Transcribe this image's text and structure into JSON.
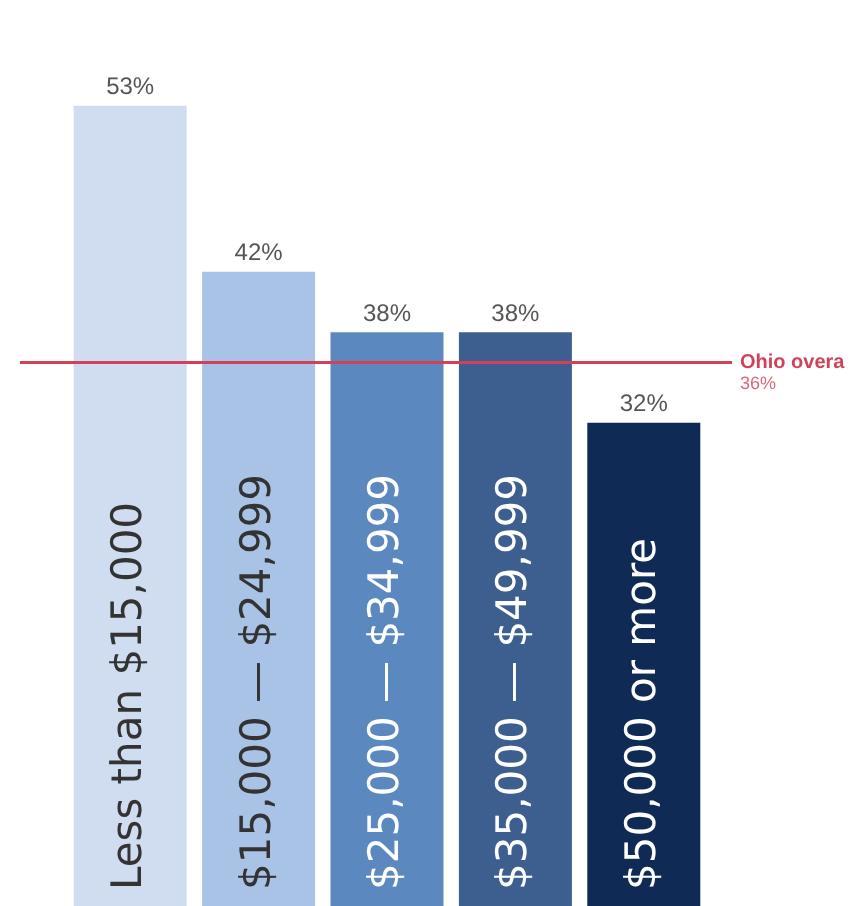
{
  "chart_data": {
    "type": "bar",
    "categories": [
      "Less than $15,000",
      "$15,000 — $24,999",
      "$25,000 — $34,999",
      "$35,000 — $49,999",
      "$50,000 or more"
    ],
    "values": [
      53,
      42,
      38,
      38,
      32
    ],
    "value_labels": [
      "53%",
      "42%",
      "38%",
      "38%",
      "32%"
    ],
    "colors": [
      "#d0ddf0",
      "#a9c3e6",
      "#5b89bf",
      "#3d5f8f",
      "#0e2a55"
    ],
    "ref_lines": [
      {
        "axis": "y",
        "value": 36,
        "label": "Ohio overa",
        "color": "#d2405a"
      }
    ],
    "annotations": [
      "36%"
    ]
  }
}
